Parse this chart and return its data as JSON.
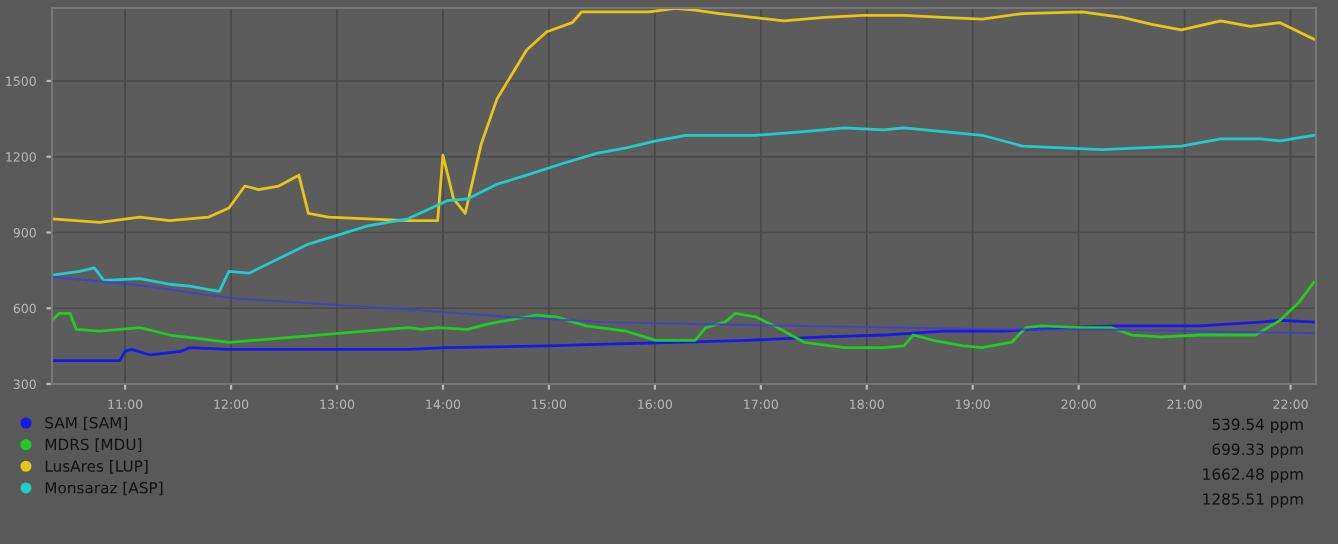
{
  "chart_data": {
    "type": "line",
    "xlim": [
      10.31,
      22.24
    ],
    "ylim": [
      300,
      1789
    ],
    "xticks": [
      {
        "value": 11,
        "label": "11:00"
      },
      {
        "value": 12,
        "label": "12:00"
      },
      {
        "value": 13,
        "label": "13:00"
      },
      {
        "value": 14,
        "label": "14:00"
      },
      {
        "value": 15,
        "label": "15:00"
      },
      {
        "value": 16,
        "label": "16:00"
      },
      {
        "value": 17,
        "label": "17:00"
      },
      {
        "value": 18,
        "label": "18:00"
      },
      {
        "value": 19,
        "label": "19:00"
      },
      {
        "value": 20,
        "label": "20:00"
      },
      {
        "value": 21,
        "label": "21:00"
      },
      {
        "value": 22,
        "label": "22:00"
      }
    ],
    "yticks": [
      300,
      600,
      900,
      1200,
      1500
    ],
    "grid": true,
    "legend": "bottom",
    "marker": "none",
    "line_style": "solid",
    "series": [
      {
        "name": "SAM [SAM]",
        "color": "#1818e8",
        "x": [
          10.31,
          10.95,
          11.0,
          11.06,
          11.24,
          11.52,
          11.61,
          11.98,
          13.67,
          14.04,
          14.98,
          15.54,
          16.29,
          16.86,
          17.6,
          18.16,
          18.72,
          19.28,
          19.84,
          20.41,
          21.15,
          21.71,
          21.9,
          22.22
        ],
        "values": [
          393,
          393,
          429,
          437,
          415,
          429,
          444,
          437,
          437,
          444,
          451,
          458,
          466,
          473,
          487,
          494,
          509,
          509,
          523,
          530,
          530,
          545,
          552,
          545
        ]
      },
      {
        "name": "MDRS [MDU]",
        "color": "#22cc22",
        "x": [
          10.31,
          10.38,
          10.48,
          10.54,
          10.76,
          10.95,
          11.14,
          11.42,
          11.7,
          11.98,
          13.67,
          13.8,
          13.95,
          14.23,
          14.42,
          14.88,
          15.07,
          15.35,
          15.73,
          16.01,
          16.38,
          16.48,
          16.66,
          16.76,
          16.95,
          17.13,
          17.41,
          17.79,
          18.16,
          18.35,
          18.44,
          18.63,
          18.91,
          19.09,
          19.37,
          19.5,
          19.65,
          20.03,
          20.31,
          20.5,
          20.78,
          21.15,
          21.67,
          21.9,
          22.08,
          22.22
        ],
        "values": [
          552,
          580,
          580,
          516,
          509,
          516,
          523,
          494,
          480,
          465,
          523,
          516,
          523,
          516,
          537,
          573,
          566,
          530,
          509,
          473,
          473,
          523,
          545,
          580,
          566,
          530,
          465,
          444,
          444,
          451,
          494,
          473,
          451,
          444,
          466,
          523,
          530,
          523,
          523,
          494,
          487,
          494,
          494,
          552,
          624,
          703
        ]
      },
      {
        "name": "LusAres [LUP]",
        "color": "#e6c619",
        "x": [
          10.31,
          10.76,
          11.14,
          11.42,
          11.79,
          11.98,
          12.13,
          12.26,
          12.45,
          12.64,
          12.73,
          12.92,
          13.29,
          13.67,
          13.95,
          14.0,
          14.1,
          14.21,
          14.36,
          14.51,
          14.79,
          14.98,
          15.22,
          15.31,
          15.54,
          15.95,
          16.19,
          16.38,
          16.61,
          16.76,
          17.22,
          17.6,
          17.97,
          18.35,
          18.72,
          19.09,
          19.47,
          20.03,
          20.41,
          20.69,
          20.97,
          21.34,
          21.62,
          21.9,
          22.22
        ],
        "values": [
          954,
          940,
          961,
          947,
          961,
          997,
          1084,
          1070,
          1084,
          1127,
          976,
          961,
          954,
          947,
          947,
          1206,
          1033,
          976,
          1249,
          1429,
          1623,
          1695,
          1731,
          1774,
          1774,
          1774,
          1788,
          1781,
          1767,
          1760,
          1738,
          1752,
          1760,
          1760,
          1752,
          1745,
          1767,
          1774,
          1752,
          1724,
          1702,
          1738,
          1716,
          1731,
          1666
        ]
      },
      {
        "name": "Monsaraz [ASP]",
        "color": "#22cccc",
        "x": [
          10.31,
          10.57,
          10.71,
          10.8,
          11.14,
          11.42,
          11.61,
          11.79,
          11.89,
          11.98,
          12.17,
          12.73,
          13.29,
          13.67,
          14.04,
          14.23,
          14.51,
          14.79,
          15.16,
          15.45,
          15.73,
          16.01,
          16.29,
          16.66,
          16.95,
          17.41,
          17.79,
          18.16,
          18.35,
          18.72,
          19.09,
          19.47,
          19.84,
          20.22,
          20.59,
          20.97,
          21.34,
          21.71,
          21.9,
          22.22
        ],
        "values": [
          731,
          746,
          760,
          710,
          717,
          695,
          688,
          674,
          667,
          746,
          739,
          854,
          926,
          954,
          1026,
          1033,
          1091,
          1127,
          1177,
          1213,
          1235,
          1263,
          1285,
          1285,
          1285,
          1299,
          1314,
          1306,
          1314,
          1299,
          1285,
          1242,
          1235,
          1228,
          1235,
          1242,
          1271,
          1271,
          1263,
          1285
        ]
      },
      {
        "color": "#3c3cd8",
        "x": [
          10.31,
          10.67,
          11.05,
          11.42,
          11.79,
          12.07,
          13.67,
          14.6,
          15.54,
          16.48,
          17.41,
          18.35,
          19.28,
          20.22,
          21.15,
          22.22
        ],
        "values": [
          724,
          710,
          695,
          674,
          652,
          638,
          595,
          566,
          545,
          537,
          530,
          523,
          516,
          516,
          509,
          501
        ]
      }
    ],
    "annotations": [
      "539.54 ppm",
      "699.33 ppm",
      "1662.48 ppm",
      "1285.51 ppm"
    ]
  }
}
